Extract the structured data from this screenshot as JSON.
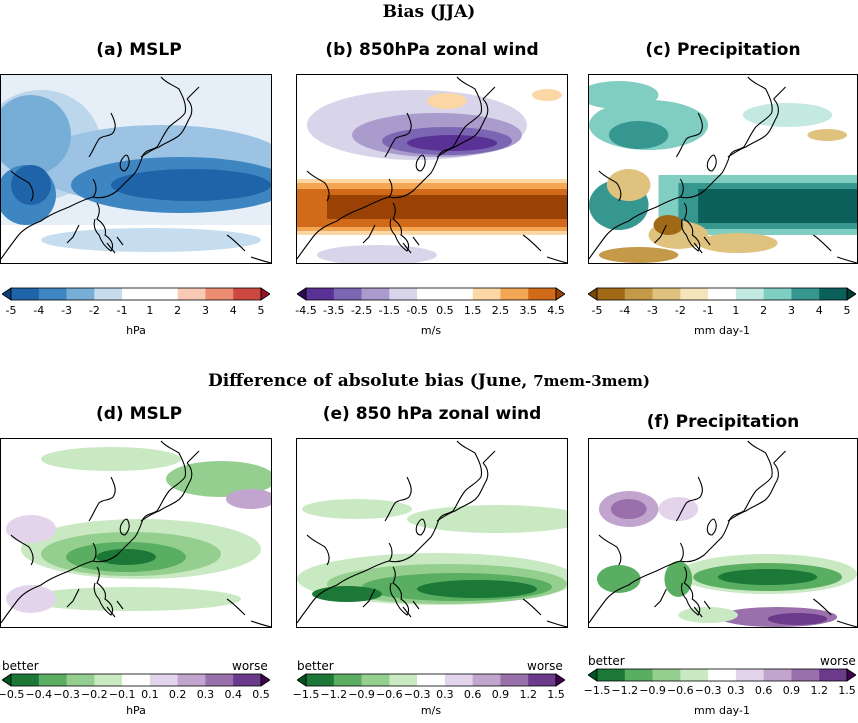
{
  "titles": {
    "top": "Bias (JJA)",
    "bottom_main": "Difference of absolute bias (June, ",
    "bottom_extra": "7mem-3mem)"
  },
  "panels": {
    "a": "(a) MSLP",
    "b": "(b) 850hPa zonal wind",
    "c": "(c) Precipitation",
    "d": "(d) MSLP",
    "e": "(e) 850 hPa zonal wind",
    "f": "(f) Precipitation"
  },
  "colorbars": {
    "a": {
      "ticks": [
        "-5",
        "-4",
        "-3",
        "-2",
        "-1",
        "1",
        "2",
        "3",
        "4",
        "5"
      ],
      "unit": "hPa",
      "colors": [
        "#0b3e78",
        "#1f63a8",
        "#3e86c2",
        "#77aed7",
        "#c5ddee",
        "#ffffff",
        "#f8c9b4",
        "#ec8c70",
        "#cd4840",
        "#9a1226"
      ]
    },
    "b": {
      "ticks": [
        "-4.5",
        "-3.5",
        "-2.5",
        "-1.5",
        "-0.5",
        "0.5",
        "1.5",
        "2.5",
        "3.5",
        "4.5"
      ],
      "unit": "m/s",
      "colors": [
        "#2e0a54",
        "#5a3195",
        "#7a66b2",
        "#a99bcc",
        "#d8d5ea",
        "#ffffff",
        "#fbd7a5",
        "#f3a755",
        "#d26b19",
        "#9a4206"
      ]
    },
    "c": {
      "ticks": [
        "-5",
        "-4",
        "-3",
        "-2",
        "-1",
        "1",
        "2",
        "3",
        "4",
        "5"
      ],
      "unit": "mm day-1",
      "colors": [
        "#7a4707",
        "#a06915",
        "#c49a48",
        "#dfc27d",
        "#f3e4bb",
        "#ffffff",
        "#c3e9e0",
        "#80cdc1",
        "#35978f",
        "#0b6159",
        "#003c30"
      ]
    },
    "d": {
      "ticks": [
        "−0.5",
        "−0.4",
        "−0.3",
        "−0.2",
        "−0.1",
        "0.1",
        "0.2",
        "0.3",
        "0.4",
        "0.5"
      ],
      "unit": "hPa",
      "better": "better",
      "worse": "worse",
      "colors": [
        "#005522",
        "#1b7837",
        "#5aae61",
        "#95cf8f",
        "#c9e9c2",
        "#ffffff",
        "#e3d4ec",
        "#c2a5cf",
        "#9970ab",
        "#6b3a8a",
        "#40004b"
      ]
    },
    "e": {
      "ticks": [
        "−1.5",
        "−1.2",
        "−0.9",
        "−0.6",
        "−0.3",
        "0.3",
        "0.6",
        "0.9",
        "1.2",
        "1.5"
      ],
      "unit": "m/s",
      "better": "better",
      "worse": "worse",
      "colors": [
        "#005522",
        "#1b7837",
        "#5aae61",
        "#95cf8f",
        "#c9e9c2",
        "#ffffff",
        "#e3d4ec",
        "#c2a5cf",
        "#9970ab",
        "#6b3a8a",
        "#40004b"
      ]
    },
    "f": {
      "ticks": [
        "−1.5",
        "−1.2",
        "−0.9",
        "−0.6",
        "−0.3",
        "0.3",
        "0.6",
        "0.9",
        "1.2",
        "1.5"
      ],
      "unit": "mm day-1",
      "better": "better",
      "worse": "worse",
      "colors": [
        "#005522",
        "#1b7837",
        "#5aae61",
        "#95cf8f",
        "#c9e9c2",
        "#ffffff",
        "#e3d4ec",
        "#c2a5cf",
        "#9970ab",
        "#6b3a8a",
        "#40004b"
      ]
    }
  },
  "chart_data": [
    {
      "panel": "a",
      "type": "heatmap",
      "title": "(a) MSLP",
      "variable": "MSLP bias (JJA)",
      "unit": "hPa",
      "levels": [
        -5,
        -4,
        -3,
        -2,
        -1,
        1,
        2,
        3,
        4,
        5
      ],
      "features": [
        "negative bias (-3 to -5 hPa) zonal band over tropical western Pacific",
        "negative bias over East Asian continent and Korea/Japan"
      ]
    },
    {
      "panel": "b",
      "type": "heatmap",
      "title": "(b) 850hPa zonal wind",
      "variable": "850hPa zonal wind bias (JJA)",
      "unit": "m/s",
      "levels": [
        -4.5,
        -3.5,
        -2.5,
        -1.5,
        -0.5,
        0.5,
        1.5,
        2.5,
        3.5,
        4.5
      ],
      "features": [
        "strong westerly (positive) bias band 3.5-4.5 over Philippines/South China Sea",
        "easterly (negative) bias near Korea/Japan"
      ]
    },
    {
      "panel": "c",
      "type": "heatmap",
      "title": "(c) Precipitation",
      "variable": "Precipitation bias (JJA)",
      "unit": "mm day-1",
      "levels": [
        -5,
        -4,
        -3,
        -2,
        -1,
        1,
        2,
        3,
        4,
        5
      ],
      "features": [
        "wet bias (>5) zonal band east of Philippines",
        "dry bias over Philippines and South China Sea"
      ]
    },
    {
      "panel": "d",
      "type": "heatmap",
      "title": "(d) MSLP",
      "variable": "Difference of absolute MSLP bias (June, 7mem-3mem)",
      "unit": "hPa",
      "levels": [
        -0.5,
        -0.4,
        -0.3,
        -0.2,
        -0.1,
        0.1,
        0.2,
        0.3,
        0.4,
        0.5
      ]
    },
    {
      "panel": "e",
      "type": "heatmap",
      "title": "(e) 850 hPa zonal wind",
      "variable": "Difference of absolute 850hPa zonal wind bias (June, 7mem-3mem)",
      "unit": "m/s",
      "levels": [
        -1.5,
        -1.2,
        -0.9,
        -0.6,
        -0.3,
        0.3,
        0.6,
        0.9,
        1.2,
        1.5
      ]
    },
    {
      "panel": "f",
      "type": "heatmap",
      "title": "(f) Precipitation",
      "variable": "Difference of absolute precipitation bias (June, 7mem-3mem)",
      "unit": "mm day-1",
      "levels": [
        -1.5,
        -1.2,
        -0.9,
        -0.6,
        -0.3,
        0.3,
        0.6,
        0.9,
        1.2,
        1.5
      ]
    }
  ]
}
